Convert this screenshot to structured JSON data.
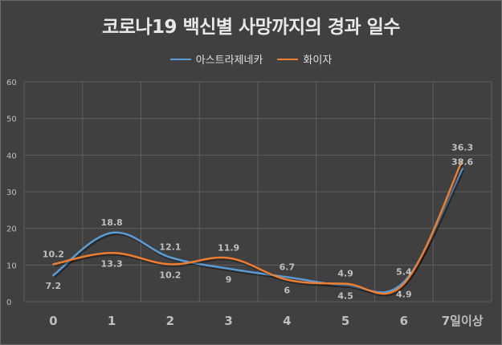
{
  "chart_data": {
    "type": "line",
    "title": "코로나19 백신별 사망까지의 경과 일수",
    "categories": [
      "0",
      "1",
      "2",
      "3",
      "4",
      "5",
      "6",
      "7일이상"
    ],
    "series": [
      {
        "name": "아스트라제네카",
        "color": "#5b9bd5",
        "values": [
          7.2,
          18.8,
          12.1,
          9,
          6.7,
          4.5,
          5.4,
          36.3
        ],
        "labels": [
          "7.2",
          "18.8",
          "12.1",
          "9",
          "6.7",
          "4.5",
          "5.4",
          "36.3"
        ]
      },
      {
        "name": "화이자",
        "color": "#ed7d31",
        "values": [
          10.2,
          13.3,
          10.2,
          11.9,
          6,
          4.9,
          4.9,
          38.6
        ],
        "labels": [
          "10.2",
          "13.3",
          "10.2",
          "11.9",
          "6",
          "4.9",
          "4.9",
          "38.6"
        ]
      }
    ],
    "ylim": [
      0,
      60
    ],
    "yticks": [
      "0",
      "10",
      "20",
      "30",
      "40",
      "50",
      "60"
    ],
    "grid": true,
    "legend_position": "top",
    "background": "#404040",
    "gridline_color": "#5e5e5e",
    "label_color": "#bfbfbf"
  }
}
